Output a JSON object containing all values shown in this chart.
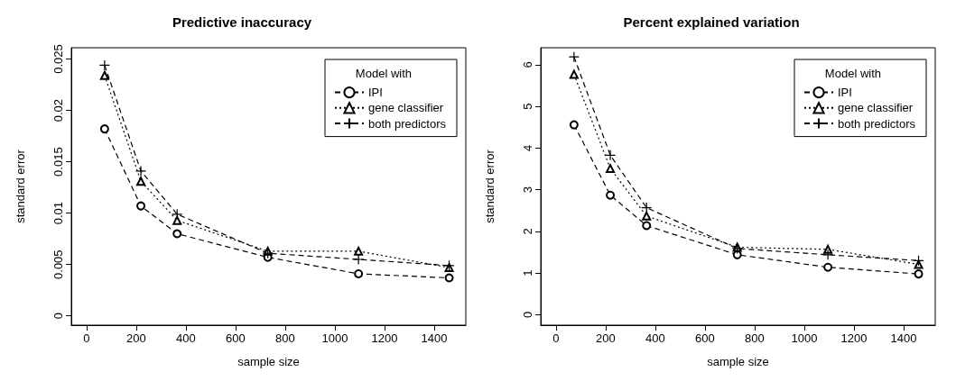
{
  "chart_data": [
    {
      "type": "line",
      "title": "Predictive inaccuracy",
      "xlabel": "sample size",
      "ylabel": "standard error",
      "legend_title": "Model with",
      "legend": "top right",
      "grid": false,
      "x": [
        73,
        219,
        365,
        730,
        1095,
        1460
      ],
      "xlim": [
        -61,
        1527
      ],
      "xticks": [
        0,
        200,
        400,
        600,
        800,
        1000,
        1200,
        1400
      ],
      "ylim": [
        -0.0009,
        0.0261
      ],
      "yticks": [
        0,
        0.005,
        0.01,
        0.015,
        0.02,
        0.025
      ],
      "series": [
        {
          "name": "IPI",
          "color": "#000000",
          "marker": "circle",
          "line_style": "dashed",
          "values": [
            0.0182,
            0.0107,
            0.008,
            0.0057,
            0.0041,
            0.0037
          ]
        },
        {
          "name": "gene classifier",
          "color": "#000000",
          "marker": "triangle",
          "line_style": "dotted",
          "values": [
            0.0234,
            0.0131,
            0.0093,
            0.0063,
            0.0063,
            0.0047
          ]
        },
        {
          "name": "both predictors",
          "color": "#000000",
          "marker": "cross",
          "line_style": "dashed",
          "values": [
            0.0244,
            0.0141,
            0.0099,
            0.0061,
            0.0055,
            0.0049
          ]
        }
      ]
    },
    {
      "type": "line",
      "title": "Percent explained variation",
      "xlabel": "sample size",
      "ylabel": "standard error",
      "legend_title": "Model with",
      "legend": "top right",
      "grid": false,
      "x": [
        73,
        219,
        365,
        730,
        1095,
        1460
      ],
      "xlim": [
        -61,
        1527
      ],
      "xticks": [
        0,
        200,
        400,
        600,
        800,
        1000,
        1200,
        1400
      ],
      "ylim": [
        -0.25,
        6.41
      ],
      "yticks": [
        0,
        1,
        2,
        3,
        4,
        5,
        6
      ],
      "series": [
        {
          "name": "IPI",
          "color": "#000000",
          "marker": "circle",
          "line_style": "dashed",
          "values": [
            4.56,
            2.87,
            2.14,
            1.44,
            1.14,
            0.98
          ]
        },
        {
          "name": "gene classifier",
          "color": "#000000",
          "marker": "triangle",
          "line_style": "dotted",
          "values": [
            5.77,
            3.51,
            2.37,
            1.62,
            1.57,
            1.21
          ]
        },
        {
          "name": "both predictors",
          "color": "#000000",
          "marker": "cross",
          "line_style": "dashed",
          "values": [
            6.19,
            3.83,
            2.57,
            1.59,
            1.44,
            1.3
          ]
        }
      ]
    }
  ]
}
